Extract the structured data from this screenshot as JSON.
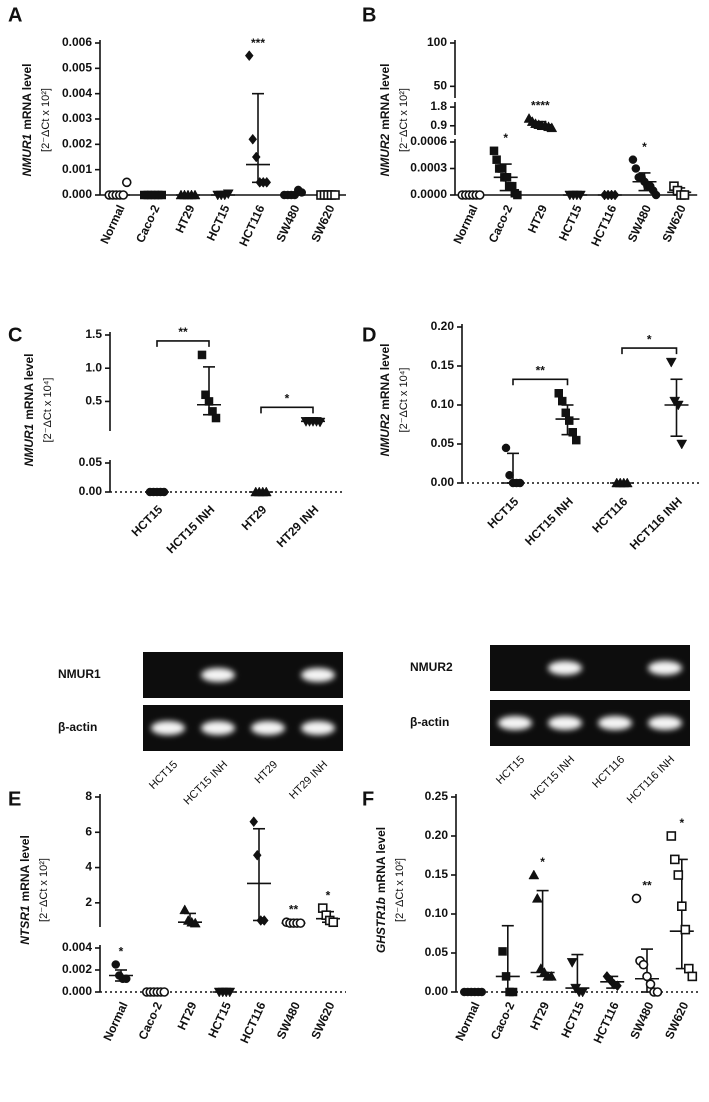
{
  "chart_data": [
    {
      "type": "dot",
      "label": "A",
      "gene": "NMUR1",
      "ylabel": "mRNA level",
      "unit": "[2⁻ΔCt x 10²]",
      "x_axis": true,
      "ylim": [
        0,
        0.006
      ],
      "yticks": [
        {
          "value": 0,
          "label": "0.000"
        },
        {
          "value": 0.001,
          "label": "0.001"
        },
        {
          "value": 0.002,
          "label": "0.002"
        },
        {
          "value": 0.003,
          "label": "0.003"
        },
        {
          "value": 0.004,
          "label": "0.004"
        },
        {
          "value": 0.005,
          "label": "0.005"
        },
        {
          "value": 0.006,
          "label": "0.006"
        }
      ],
      "categories": [
        "Normal",
        "Caco-2",
        "HT29",
        "HCT15",
        "HCT116",
        "SW480",
        "SW620"
      ],
      "groups": [
        {
          "marker": "open-circle",
          "points": [
            0,
            0,
            0,
            0,
            0,
            0.0005
          ],
          "center": 0,
          "low": 0,
          "high": 0
        },
        {
          "marker": "square",
          "points": [
            0,
            0,
            0,
            0,
            0,
            0
          ],
          "center": 0,
          "low": 0,
          "high": 0
        },
        {
          "marker": "triangle",
          "points": [
            0,
            0,
            0,
            0,
            0
          ],
          "center": 0,
          "low": 0,
          "high": 0
        },
        {
          "marker": "triangle-down",
          "points": [
            0,
            0,
            0,
            5e-05
          ],
          "center": 0,
          "low": 0,
          "high": 0.0001
        },
        {
          "marker": "diamond",
          "points": [
            0.0055,
            0.0022,
            0.0015,
            0.0005,
            0.0005,
            0.0005
          ],
          "center": 0.0012,
          "low": 0.0005,
          "high": 0.004,
          "sig": "***"
        },
        {
          "marker": "circle",
          "points": [
            0,
            0,
            0,
            0,
            0.0002,
            0.0001
          ],
          "center": 0,
          "low": 0,
          "high": 0.0001
        },
        {
          "marker": "open-square",
          "points": [
            0,
            0,
            0,
            0,
            0
          ],
          "center": 0,
          "low": 0,
          "high": 0
        }
      ]
    },
    {
      "type": "dot",
      "label": "B",
      "gene": "NMUR2",
      "ylabel": "mRNA level",
      "unit": "[2⁻ΔCt x 10²]",
      "x_axis": true,
      "segments": [
        {
          "ylim": [
            0,
            0.0006
          ],
          "yticks": [
            {
              "value": 0,
              "label": "0.0000"
            },
            {
              "value": 0.0003,
              "label": "0.0003"
            },
            {
              "value": 0.0006,
              "label": "0.0006"
            }
          ]
        },
        {
          "ylim": [
            0.6,
            1.9
          ],
          "yticks": [
            0.9,
            1.8
          ]
        },
        {
          "ylim": [
            40,
            100
          ],
          "yticks": [
            50,
            100
          ]
        }
      ],
      "categories": [
        "Normal",
        "Caco-2",
        "HT29",
        "HCT15",
        "HCT116",
        "SW480",
        "SW620"
      ],
      "groups": [
        {
          "marker": "open-circle",
          "points": [
            0,
            0,
            0,
            0,
            0,
            0
          ],
          "center": 0,
          "low": 0,
          "high": 0
        },
        {
          "marker": "square",
          "points": [
            0.0005,
            0.0004,
            0.0003,
            0.0003,
            0.0002,
            0.0002,
            0.0001,
            0.0001,
            2e-05,
            0
          ],
          "center": 0.0002,
          "low": 5e-05,
          "high": 0.00035,
          "sig": "*"
        },
        {
          "marker": "triangle",
          "points": [
            1.25,
            1.1,
            1.0,
            0.95,
            0.9,
            0.9,
            0.85,
            0.8
          ],
          "center": 0.95,
          "low": 0.85,
          "high": 1.1,
          "sig": "****"
        },
        {
          "marker": "triangle-down",
          "points": [
            0,
            0,
            0,
            0
          ],
          "center": 0,
          "low": 0,
          "high": 0
        },
        {
          "marker": "diamond",
          "points": [
            0,
            0,
            0,
            0
          ],
          "center": 0,
          "low": 0,
          "high": 0
        },
        {
          "marker": "circle",
          "points": [
            0.0004,
            0.0003,
            0.0002,
            0.0002,
            0.00015,
            0.0001,
            0.0001,
            5e-05,
            0
          ],
          "center": 0.00015,
          "low": 5e-05,
          "high": 0.00025,
          "sig": "*"
        },
        {
          "marker": "open-square",
          "points": [
            0.0001,
            5e-05,
            0,
            0
          ],
          "center": 3e-05,
          "low": 0,
          "high": 8e-05
        }
      ]
    },
    {
      "type": "dot",
      "label": "C",
      "gene": "NMUR1",
      "ylabel": "mRNA level",
      "unit": "[2⁻ΔCt x 10⁴]",
      "zero_line": "dotted",
      "segments": [
        {
          "ylim": [
            0,
            0.05
          ],
          "yticks": [
            {
              "value": 0,
              "label": "0.00"
            },
            {
              "value": 0.05,
              "label": "0.05"
            }
          ]
        },
        {
          "ylim": [
            0.1,
            1.5
          ],
          "yticks": [
            0.5,
            {
              "value": 1,
              "label": "1.0"
            },
            1.5
          ]
        }
      ],
      "categories": [
        "HCT15",
        "HCT15 INH",
        "HT29",
        "HT29 INH"
      ],
      "groups": [
        {
          "marker": "circle",
          "points": [
            0,
            0,
            0,
            0,
            0
          ],
          "center": 0,
          "low": 0,
          "high": 0
        },
        {
          "marker": "square",
          "points": [
            1.2,
            0.6,
            0.5,
            0.35,
            0.25
          ],
          "center": 0.45,
          "low": 0.3,
          "high": 1.02
        },
        {
          "marker": "triangle",
          "points": [
            0,
            0,
            0,
            0
          ],
          "center": 0,
          "low": 0,
          "high": 0
        },
        {
          "marker": "triangle-down",
          "points": [
            0.2,
            0.2,
            0.2,
            0.2,
            0.19
          ],
          "center": 0.2,
          "low": 0.19,
          "high": 0.2
        }
      ],
      "comparisons": [
        {
          "groups": [
            "HCT15",
            "HCT15 INH"
          ],
          "label": "**"
        },
        {
          "groups": [
            "HT29",
            "HT29 INH"
          ],
          "label": "*"
        }
      ]
    },
    {
      "type": "dot",
      "label": "D",
      "gene": "NMUR2",
      "ylabel": "mRNA level",
      "unit": "[2⁻ΔCt x 10⁴]",
      "zero_line": "dotted",
      "ylim": [
        0,
        0.2
      ],
      "yticks": [
        {
          "value": 0,
          "label": "0.00"
        },
        0.05,
        {
          "value": 0.1,
          "label": "0.10"
        },
        0.15,
        {
          "value": 0.2,
          "label": "0.20"
        }
      ],
      "categories": [
        "HCT15",
        "HCT15 INH",
        "HCT116",
        "HCT116 INH"
      ],
      "groups": [
        {
          "marker": "circle",
          "points": [
            0.045,
            0.01,
            0,
            0,
            0
          ],
          "center": 0,
          "low": 0,
          "high": 0.038
        },
        {
          "marker": "square",
          "points": [
            0.115,
            0.105,
            0.09,
            0.08,
            0.065,
            0.055
          ],
          "center": 0.082,
          "low": 0.062,
          "high": 0.1
        },
        {
          "marker": "triangle",
          "points": [
            0,
            0,
            0,
            0
          ],
          "center": 0,
          "low": 0,
          "high": 0
        },
        {
          "marker": "triangle-down",
          "points": [
            0.155,
            0.105,
            0.1,
            0.05
          ],
          "center": 0.1,
          "low": 0.06,
          "high": 0.133
        }
      ],
      "comparisons": [
        {
          "groups": [
            "HCT15",
            "HCT15 INH"
          ],
          "label": "**"
        },
        {
          "groups": [
            "HCT116",
            "HCT116 INH"
          ],
          "label": "*"
        }
      ]
    },
    {
      "type": "dot",
      "label": "E",
      "gene": "NTSR1",
      "ylabel": "mRNA level",
      "unit": "[2⁻ΔCt x 10²]",
      "zero_line": "dotted",
      "segments": [
        {
          "ylim": [
            0,
            0.004
          ],
          "yticks": [
            {
              "value": 0,
              "label": "0.000"
            },
            {
              "value": 0.002,
              "label": "0.002"
            },
            {
              "value": 0.004,
              "label": "0.004"
            }
          ]
        },
        {
          "ylim": [
            0.8,
            8
          ],
          "yticks": [
            2,
            4,
            6,
            8
          ]
        }
      ],
      "categories": [
        "Normal",
        "Caco-2",
        "HT29",
        "HCT15",
        "HCT116",
        "SW480",
        "SW620"
      ],
      "groups": [
        {
          "marker": "circle",
          "points": [
            0.0025,
            0.0015,
            0.0012,
            0.0012
          ],
          "center": 0.0015,
          "low": 0.001,
          "high": 0.002,
          "sig": "*"
        },
        {
          "marker": "open-circle",
          "points": [
            0,
            0,
            0,
            0,
            0,
            0
          ],
          "center": 0,
          "low": 0,
          "high": 0
        },
        {
          "marker": "triangle",
          "points": [
            1.6,
            1.0,
            0.9,
            0.85
          ],
          "center": 0.9,
          "low": 0.85,
          "high": 1.4
        },
        {
          "marker": "triangle-down",
          "points": [
            0,
            0,
            0,
            0
          ],
          "center": 0,
          "low": 0,
          "high": 0
        },
        {
          "marker": "diamond",
          "points": [
            6.6,
            4.7,
            1.0,
            1.0
          ],
          "center": 3.1,
          "low": 1.0,
          "high": 6.2
        },
        {
          "marker": "open-circle",
          "points": [
            0.9,
            0.85,
            0.85,
            0.85,
            0.85
          ],
          "center": 0.85,
          "low": 0.85,
          "high": 0.87,
          "sig": "**"
        },
        {
          "marker": "open-square",
          "points": [
            1.7,
            1.3,
            1.0,
            0.9
          ],
          "center": 1.1,
          "low": 0.9,
          "high": 1.5,
          "sig": "*"
        }
      ]
    },
    {
      "type": "dot",
      "label": "F",
      "gene": "GHSTR1b",
      "ylabel": "mRNA level",
      "unit": "[2⁻ΔCt x 10²]",
      "zero_line": "dotted",
      "ylim": [
        0,
        0.25
      ],
      "yticks": [
        {
          "value": 0,
          "label": "0.00"
        },
        0.05,
        {
          "value": 0.1,
          "label": "0.10"
        },
        0.15,
        {
          "value": 0.2,
          "label": "0.20"
        },
        0.25
      ],
      "categories": [
        "Normal",
        "Caco-2",
        "HT29",
        "HCT15",
        "HCT116",
        "SW480",
        "SW620"
      ],
      "groups": [
        {
          "marker": "circle",
          "points": [
            0,
            0,
            0,
            0,
            0,
            0
          ],
          "center": 0,
          "low": 0,
          "high": 0
        },
        {
          "marker": "square",
          "points": [
            0.052,
            0.02,
            0,
            0
          ],
          "center": 0.02,
          "low": 0,
          "high": 0.085
        },
        {
          "marker": "triangle",
          "points": [
            0.15,
            0.12,
            0.03,
            0.025,
            0.02,
            0.02
          ],
          "center": 0.025,
          "low": 0.02,
          "high": 0.13,
          "sig": "*"
        },
        {
          "marker": "triangle-down",
          "points": [
            0.038,
            0.005,
            0,
            0
          ],
          "center": 0.005,
          "low": 0,
          "high": 0.048
        },
        {
          "marker": "diamond",
          "points": [
            0.02,
            0.015,
            0.01,
            0.008
          ],
          "center": 0.013,
          "low": 0.005,
          "high": 0.02
        },
        {
          "marker": "open-circle",
          "points": [
            0.12,
            0.04,
            0.035,
            0.02,
            0.01,
            0,
            0
          ],
          "center": 0.017,
          "low": 0,
          "high": 0.055,
          "sig": "**"
        },
        {
          "marker": "open-square",
          "points": [
            0.2,
            0.17,
            0.15,
            0.11,
            0.08,
            0.03,
            0.02
          ],
          "center": 0.078,
          "low": 0.03,
          "high": 0.17,
          "sig": "*"
        }
      ]
    }
  ],
  "gels": [
    {
      "rows": [
        "NMUR1",
        "β-actin"
      ],
      "lanes": [
        "HCT15",
        "HCT15 INH",
        "HT29",
        "HT29 INH"
      ],
      "present": [
        [
          false,
          true,
          false,
          true
        ],
        [
          true,
          true,
          true,
          true
        ]
      ]
    },
    {
      "rows": [
        "NMUR2",
        "β-actin"
      ],
      "lanes": [
        "HCT15",
        "HCT15 INH",
        "HCT116",
        "HCT116 INH"
      ],
      "present": [
        [
          false,
          true,
          false,
          true
        ],
        [
          true,
          true,
          true,
          true
        ]
      ]
    }
  ]
}
